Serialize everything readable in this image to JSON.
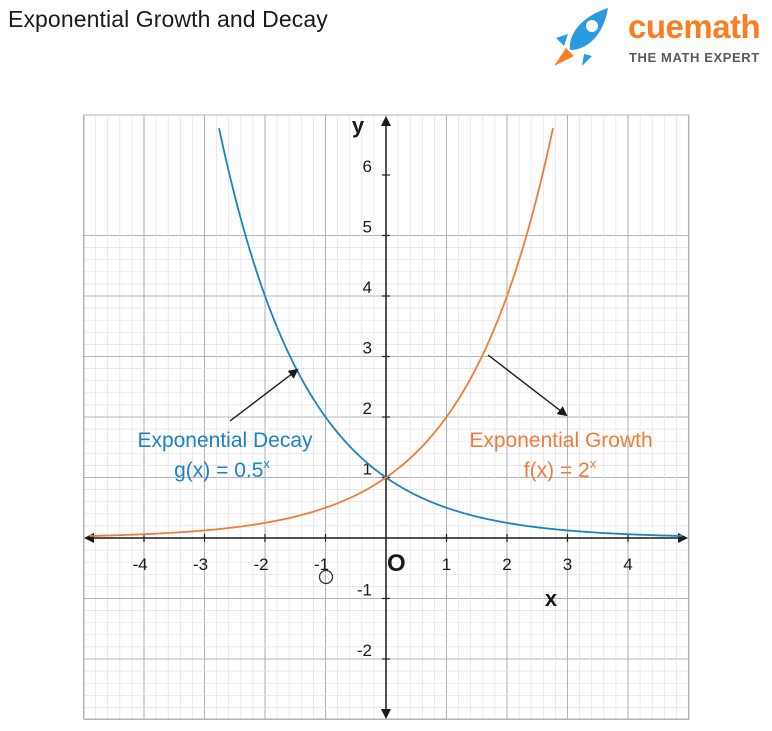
{
  "title": "Exponential Growth and Decay",
  "brand": {
    "name": "cuemath",
    "tagline": "THE MATH EXPERT",
    "icon": "rocket-icon",
    "colors": {
      "orange": "#f97d22",
      "blue": "#2b9be0"
    }
  },
  "chart_data": {
    "type": "line",
    "title": "Exponential Growth and Decay",
    "xlabel": "x",
    "ylabel": "y",
    "origin_label": "O",
    "xlim": [
      -5,
      5
    ],
    "ylim": [
      -3,
      7
    ],
    "x_ticks": [
      -4,
      -3,
      -2,
      -1,
      1,
      2,
      3,
      4
    ],
    "y_ticks": [
      -2,
      -1,
      1,
      2,
      3,
      4,
      5,
      6
    ],
    "grid": true,
    "series": [
      {
        "name": "Exponential Decay",
        "formula": "g(x) = 0.5",
        "formula_sup": "x",
        "function": "0.5^x",
        "x_range": [
          -2.76,
          4.9
        ],
        "color": "#1a82c8",
        "x": [
          -2.76,
          -2,
          -1.5,
          -1,
          -0.5,
          0,
          1,
          2,
          3,
          4,
          4.9
        ],
        "y": [
          6.77,
          4,
          2.83,
          2,
          1.41,
          1,
          0.5,
          0.25,
          0.125,
          0.0625,
          0.0335
        ]
      },
      {
        "name": "Exponential Growth",
        "formula": "f(x) = 2",
        "formula_sup": "x",
        "function": "2^x",
        "x_range": [
          -4.9,
          2.76
        ],
        "color": "#f07c3a",
        "x": [
          -4.9,
          -4,
          -3,
          -2,
          -1,
          0,
          0.5,
          1,
          1.5,
          2,
          2.76
        ],
        "y": [
          0.0335,
          0.0625,
          0.125,
          0.25,
          0.5,
          1,
          1.41,
          2,
          2.83,
          4,
          6.77
        ]
      }
    ],
    "annotations": [
      {
        "text": "Exponential Decay",
        "formula": "g(x) = 0.5",
        "sup": "x",
        "color": "#1a82c8"
      },
      {
        "text": "Exponential Growth",
        "formula": "f(x) = 2",
        "sup": "x",
        "color": "#f07c3a"
      }
    ]
  }
}
